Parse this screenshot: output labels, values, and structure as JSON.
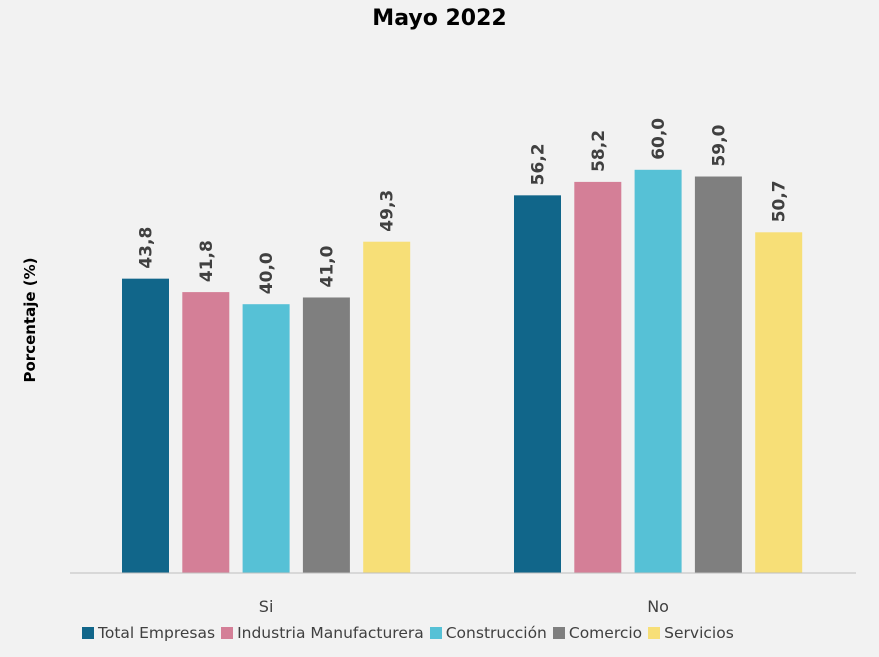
{
  "chart_data": {
    "type": "bar",
    "title": "Mayo 2022",
    "xlabel": "",
    "ylabel": "Porcentaje (%)",
    "categories": [
      "Si",
      "No"
    ],
    "ylim": [
      0,
      70
    ],
    "grid": false,
    "legend_position": "bottom",
    "series": [
      {
        "name": "Total Empresas",
        "color": "#11668a",
        "values": [
          43.8,
          56.2
        ],
        "labels": [
          "43,8",
          "56,2"
        ]
      },
      {
        "name": "Industria Manufacturera",
        "color": "#d47f97",
        "values": [
          41.8,
          58.2
        ],
        "labels": [
          "41,8",
          "58,2"
        ]
      },
      {
        "name": "Construcción",
        "color": "#56c1d6",
        "values": [
          40.0,
          60.0
        ],
        "labels": [
          "40,0",
          "60,0"
        ]
      },
      {
        "name": "Comercio",
        "color": "#7f7f7f",
        "values": [
          41.0,
          59.0
        ],
        "labels": [
          "41,0",
          "59,0"
        ]
      },
      {
        "name": "Servicios",
        "color": "#f7df77",
        "values": [
          49.3,
          50.7
        ],
        "labels": [
          "49,3",
          "50,7"
        ]
      }
    ]
  }
}
